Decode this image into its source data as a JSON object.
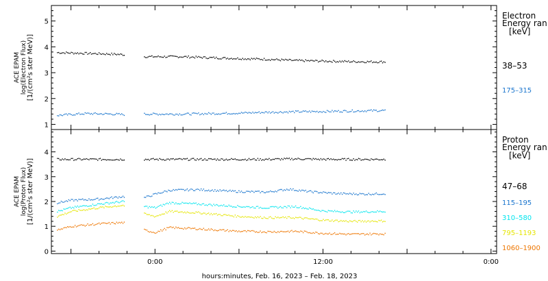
{
  "xlabel": "hours:minutes, Feb. 16, 2023 – Feb. 18, 2023",
  "x_ticks": [
    {
      "hour": 0,
      "label": "0:00"
    },
    {
      "hour": 12,
      "label": "12:00"
    },
    {
      "hour": 24,
      "label": "0:00"
    }
  ],
  "x_range_hours": [
    -7.4,
    24.4
  ],
  "data_end_hour": 16.4,
  "gap_hours": [
    -2.2,
    -0.8
  ],
  "chart_data": [
    {
      "type": "scatter",
      "ylabel_lines": [
        "ACE EPAM",
        "log(Electron Flux)",
        "[1/(cm²s ster MeV)]"
      ],
      "ylim": [
        0.8,
        5.6
      ],
      "yticks": [
        1,
        2,
        3,
        4,
        5
      ],
      "legend_title": [
        "Electron",
        "Energy ran"
      ],
      "legend_unit": "[keV]",
      "series": [
        {
          "name": "38–53",
          "color": "#000000",
          "points": [
            [
              -7.0,
              3.78
            ],
            [
              -5.0,
              3.75
            ],
            [
              -3.0,
              3.72
            ],
            [
              -2.3,
              3.7
            ],
            [
              -0.8,
              3.62
            ],
            [
              2.0,
              3.62
            ],
            [
              4.0,
              3.58
            ],
            [
              6.0,
              3.55
            ],
            [
              8.0,
              3.52
            ],
            [
              10.0,
              3.47
            ],
            [
              12.0,
              3.45
            ],
            [
              14.0,
              3.43
            ],
            [
              16.4,
              3.42
            ]
          ]
        },
        {
          "name": "175–315",
          "color": "#1874cd",
          "points": [
            [
              -7.0,
              1.35
            ],
            [
              -5.0,
              1.42
            ],
            [
              -3.0,
              1.4
            ],
            [
              -2.3,
              1.38
            ],
            [
              -0.8,
              1.4
            ],
            [
              2.0,
              1.4
            ],
            [
              4.0,
              1.42
            ],
            [
              6.0,
              1.44
            ],
            [
              8.0,
              1.47
            ],
            [
              10.0,
              1.49
            ],
            [
              12.0,
              1.5
            ],
            [
              14.0,
              1.52
            ],
            [
              16.4,
              1.54
            ]
          ]
        }
      ]
    },
    {
      "type": "scatter",
      "ylabel_lines": [
        "ACE EPAM",
        "log(Proton Flux)",
        "[1/(cm²s ster MeV)]"
      ],
      "ylim": [
        -0.1,
        4.9
      ],
      "yticks": [
        0,
        1,
        2,
        3,
        4
      ],
      "legend_title": [
        "Proton",
        "Energy ran"
      ],
      "legend_unit": "[keV]",
      "series": [
        {
          "name": "47–68",
          "color": "#000000",
          "points": [
            [
              -7.0,
              3.7
            ],
            [
              -4.0,
              3.7
            ],
            [
              -2.3,
              3.7
            ],
            [
              -0.8,
              3.7
            ],
            [
              4.0,
              3.7
            ],
            [
              8.0,
              3.7
            ],
            [
              10.0,
              3.72
            ],
            [
              12.0,
              3.7
            ],
            [
              16.4,
              3.7
            ]
          ]
        },
        {
          "name": "115–195",
          "color": "#1874cd",
          "points": [
            [
              -7.0,
              1.95
            ],
            [
              -6.0,
              2.05
            ],
            [
              -4.0,
              2.1
            ],
            [
              -2.3,
              2.2
            ],
            [
              -0.8,
              2.15
            ],
            [
              0.0,
              2.3
            ],
            [
              1.0,
              2.45
            ],
            [
              3.0,
              2.48
            ],
            [
              6.0,
              2.4
            ],
            [
              8.0,
              2.38
            ],
            [
              9.5,
              2.5
            ],
            [
              11.0,
              2.4
            ],
            [
              13.0,
              2.32
            ],
            [
              15.0,
              2.3
            ],
            [
              16.4,
              2.32
            ]
          ]
        },
        {
          "name": "310–580",
          "color": "#00e5ee",
          "points": [
            [
              -7.0,
              1.6
            ],
            [
              -6.0,
              1.75
            ],
            [
              -4.0,
              1.9
            ],
            [
              -2.3,
              2.0
            ],
            [
              -0.8,
              1.8
            ],
            [
              0.0,
              1.75
            ],
            [
              1.0,
              1.95
            ],
            [
              3.0,
              1.9
            ],
            [
              6.0,
              1.8
            ],
            [
              8.0,
              1.75
            ],
            [
              10.0,
              1.8
            ],
            [
              12.0,
              1.62
            ],
            [
              14.0,
              1.58
            ],
            [
              16.4,
              1.6
            ]
          ]
        },
        {
          "name": "795–1193",
          "color": "#e5e500",
          "points": [
            [
              -7.0,
              1.4
            ],
            [
              -6.0,
              1.6
            ],
            [
              -4.0,
              1.75
            ],
            [
              -2.3,
              1.85
            ],
            [
              -0.8,
              1.5
            ],
            [
              0.0,
              1.4
            ],
            [
              1.0,
              1.6
            ],
            [
              3.0,
              1.55
            ],
            [
              6.0,
              1.4
            ],
            [
              8.0,
              1.35
            ],
            [
              10.0,
              1.35
            ],
            [
              12.0,
              1.25
            ],
            [
              14.0,
              1.2
            ],
            [
              16.4,
              1.22
            ]
          ]
        },
        {
          "name": "1060–1900",
          "color": "#ee7600",
          "points": [
            [
              -7.0,
              0.85
            ],
            [
              -6.0,
              1.0
            ],
            [
              -4.0,
              1.1
            ],
            [
              -2.3,
              1.15
            ],
            [
              -0.8,
              0.85
            ],
            [
              0.0,
              0.75
            ],
            [
              1.0,
              0.95
            ],
            [
              3.0,
              0.9
            ],
            [
              6.0,
              0.8
            ],
            [
              8.0,
              0.78
            ],
            [
              10.0,
              0.8
            ],
            [
              12.0,
              0.72
            ],
            [
              14.0,
              0.68
            ],
            [
              16.4,
              0.7
            ]
          ]
        }
      ]
    }
  ]
}
